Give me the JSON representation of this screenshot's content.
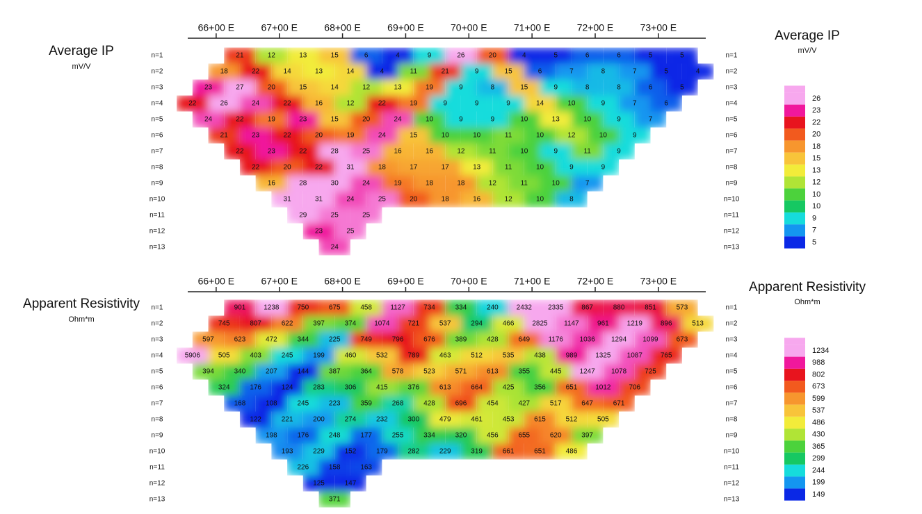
{
  "chart_data": [
    {
      "type": "pseudosection",
      "title": "Average IP",
      "subtitle": "mV/V",
      "xlim": [
        6555,
        7375
      ],
      "xticks": [
        {
          "value": 6600,
          "label": "66+00 E"
        },
        {
          "value": 6700,
          "label": "67+00 E"
        },
        {
          "value": 6800,
          "label": "68+00 E"
        },
        {
          "value": 6900,
          "label": "69+00 E"
        },
        {
          "value": 7000,
          "label": "70+00 E"
        },
        {
          "value": 7100,
          "label": "71+00 E"
        },
        {
          "value": 7200,
          "label": "72+00 E"
        },
        {
          "value": 7300,
          "label": "73+00 E"
        }
      ],
      "series": [
        {
          "name": "n=1",
          "x": [
            6637.5,
            6687.5,
            6737.5,
            6787.5,
            6837.5,
            6887.5,
            6937.5,
            6987.5,
            7037.5,
            7087.5,
            7137.5,
            7187.5,
            7237.5,
            7287.5,
            7337.5
          ],
          "values": [
            21,
            12,
            13,
            15,
            6,
            4,
            9,
            26,
            20,
            4,
            5,
            6,
            6,
            5,
            5
          ]
        },
        {
          "name": "n=2",
          "x": [
            6612.5,
            6662.5,
            6712.5,
            6762.5,
            6812.5,
            6862.5,
            6912.5,
            6962.5,
            7012.5,
            7062.5,
            7112.5,
            7162.5,
            7212.5,
            7262.5,
            7312.5,
            7362.5
          ],
          "values": [
            18,
            22,
            14,
            13,
            14,
            4,
            11,
            21,
            9,
            15,
            6,
            7,
            8,
            7,
            5,
            4
          ]
        },
        {
          "name": "n=3",
          "x": [
            6587.5,
            6637.5,
            6687.5,
            6737.5,
            6787.5,
            6837.5,
            6887.5,
            6937.5,
            6987.5,
            7037.5,
            7087.5,
            7137.5,
            7187.5,
            7237.5,
            7287.5,
            7337.5
          ],
          "values": [
            23,
            27,
            20,
            15,
            14,
            12,
            13,
            19,
            9,
            8,
            15,
            9,
            8,
            8,
            6,
            5
          ]
        },
        {
          "name": "n=4",
          "x": [
            6562.5,
            6612.5,
            6662.5,
            6712.5,
            6762.5,
            6812.5,
            6862.5,
            6912.5,
            6962.5,
            7012.5,
            7062.5,
            7112.5,
            7162.5,
            7212.5,
            7262.5,
            7312.5
          ],
          "values": [
            22,
            26,
            24,
            22,
            16,
            12,
            22,
            19,
            9,
            9,
            9,
            14,
            10,
            9,
            7,
            6
          ]
        },
        {
          "name": "n=5",
          "x": [
            6587.5,
            6637.5,
            6687.5,
            6737.5,
            6787.5,
            6837.5,
            6887.5,
            6937.5,
            6987.5,
            7037.5,
            7087.5,
            7137.5,
            7187.5,
            7237.5,
            7287.5
          ],
          "values": [
            24,
            22,
            19,
            23,
            15,
            20,
            24,
            10,
            9,
            9,
            10,
            13,
            10,
            9,
            7
          ]
        },
        {
          "name": "n=6",
          "x": [
            6612.5,
            6662.5,
            6712.5,
            6762.5,
            6812.5,
            6862.5,
            6912.5,
            6962.5,
            7012.5,
            7062.5,
            7112.5,
            7162.5,
            7212.5,
            7262.5
          ],
          "values": [
            21,
            23,
            22,
            20,
            19,
            24,
            15,
            10,
            10,
            11,
            10,
            12,
            10,
            9
          ]
        },
        {
          "name": "n=7",
          "x": [
            6637.5,
            6687.5,
            6737.5,
            6787.5,
            6837.5,
            6887.5,
            6937.5,
            6987.5,
            7037.5,
            7087.5,
            7137.5,
            7187.5,
            7237.5
          ],
          "values": [
            22,
            23,
            22,
            28,
            25,
            16,
            16,
            12,
            11,
            10,
            9,
            11,
            9
          ]
        },
        {
          "name": "n=8",
          "x": [
            6662.5,
            6712.5,
            6762.5,
            6812.5,
            6862.5,
            6912.5,
            6962.5,
            7012.5,
            7062.5,
            7112.5,
            7162.5,
            7212.5
          ],
          "values": [
            22,
            20,
            22,
            31,
            18,
            17,
            17,
            13,
            11,
            10,
            9,
            9
          ]
        },
        {
          "name": "n=9",
          "x": [
            6687.5,
            6737.5,
            6787.5,
            6837.5,
            6887.5,
            6937.5,
            6987.5,
            7037.5,
            7087.5,
            7137.5,
            7187.5
          ],
          "values": [
            16,
            28,
            30,
            24,
            19,
            18,
            18,
            12,
            11,
            10,
            7
          ]
        },
        {
          "name": "n=10",
          "x": [
            6712.5,
            6762.5,
            6812.5,
            6862.5,
            6912.5,
            6962.5,
            7012.5,
            7062.5,
            7112.5,
            7162.5
          ],
          "values": [
            31,
            31,
            24,
            25,
            20,
            18,
            16,
            12,
            10,
            8
          ]
        },
        {
          "name": "n=11",
          "x": [
            6737.5,
            6787.5,
            6837.5
          ],
          "values": [
            29,
            25,
            25
          ]
        },
        {
          "name": "n=12",
          "x": [
            6762.5,
            6812.5
          ],
          "values": [
            23,
            25
          ]
        },
        {
          "name": "n=13",
          "x": [
            6787.5
          ],
          "values": [
            24
          ]
        }
      ],
      "color_scale": {
        "values": [
          26,
          23,
          22,
          20,
          18,
          15,
          13,
          12,
          10,
          10,
          9,
          7,
          5
        ],
        "colors": [
          "#f7a8ee",
          "#f0189c",
          "#e8141e",
          "#f25a1e",
          "#f7962e",
          "#f8c43a",
          "#f2ec3a",
          "#b0e436",
          "#4cd23c",
          "#16c862",
          "#16dcdc",
          "#1496f0",
          "#0a28e6"
        ]
      }
    },
    {
      "type": "pseudosection",
      "title": "Apparent Resistivity",
      "subtitle": "Ohm*m",
      "xlim": [
        6555,
        7375
      ],
      "xticks": [
        {
          "value": 6600,
          "label": "66+00 E"
        },
        {
          "value": 6700,
          "label": "67+00 E"
        },
        {
          "value": 6800,
          "label": "68+00 E"
        },
        {
          "value": 6900,
          "label": "69+00 E"
        },
        {
          "value": 7000,
          "label": "70+00 E"
        },
        {
          "value": 7100,
          "label": "71+00 E"
        },
        {
          "value": 7200,
          "label": "72+00 E"
        },
        {
          "value": 7300,
          "label": "73+00 E"
        }
      ],
      "series": [
        {
          "name": "n=1",
          "x": [
            6637.5,
            6687.5,
            6737.5,
            6787.5,
            6837.5,
            6887.5,
            6937.5,
            6987.5,
            7037.5,
            7087.5,
            7137.5,
            7187.5,
            7237.5,
            7287.5,
            7337.5
          ],
          "values": [
            901,
            1238,
            750,
            675,
            458,
            1127,
            734,
            334,
            240,
            2432,
            2335,
            867,
            880,
            851,
            573
          ]
        },
        {
          "name": "n=2",
          "x": [
            6612.5,
            6662.5,
            6712.5,
            6762.5,
            6812.5,
            6862.5,
            6912.5,
            6962.5,
            7012.5,
            7062.5,
            7112.5,
            7162.5,
            7212.5,
            7262.5,
            7312.5,
            7362.5
          ],
          "values": [
            745,
            807,
            622,
            397,
            374,
            1074,
            721,
            537,
            294,
            466,
            2825,
            1147,
            961,
            1219,
            896,
            513
          ]
        },
        {
          "name": "n=3",
          "x": [
            6587.5,
            6637.5,
            6687.5,
            6737.5,
            6787.5,
            6837.5,
            6887.5,
            6937.5,
            6987.5,
            7037.5,
            7087.5,
            7137.5,
            7187.5,
            7237.5,
            7287.5,
            7337.5
          ],
          "values": [
            597,
            623,
            472,
            344,
            225,
            749,
            796,
            676,
            389,
            428,
            649,
            1176,
            1036,
            1294,
            1099,
            673
          ]
        },
        {
          "name": "n=4",
          "x": [
            6562.5,
            6612.5,
            6662.5,
            6712.5,
            6762.5,
            6812.5,
            6862.5,
            6912.5,
            6962.5,
            7012.5,
            7062.5,
            7112.5,
            7162.5,
            7212.5,
            7262.5,
            7312.5
          ],
          "values": [
            5906,
            505,
            403,
            245,
            199,
            460,
            532,
            789,
            463,
            512,
            535,
            438,
            989,
            1325,
            1087,
            765
          ]
        },
        {
          "name": "n=5",
          "x": [
            6587.5,
            6637.5,
            6687.5,
            6737.5,
            6787.5,
            6837.5,
            6887.5,
            6937.5,
            6987.5,
            7037.5,
            7087.5,
            7137.5,
            7187.5,
            7237.5,
            7287.5
          ],
          "values": [
            394,
            340,
            207,
            144,
            387,
            364,
            578,
            523,
            571,
            613,
            355,
            445,
            1247,
            1078,
            725
          ]
        },
        {
          "name": "n=6",
          "x": [
            6612.5,
            6662.5,
            6712.5,
            6762.5,
            6812.5,
            6862.5,
            6912.5,
            6962.5,
            7012.5,
            7062.5,
            7112.5,
            7162.5,
            7212.5,
            7262.5
          ],
          "values": [
            324,
            176,
            124,
            283,
            306,
            415,
            376,
            613,
            664,
            425,
            356,
            651,
            1012,
            706
          ]
        },
        {
          "name": "n=7",
          "x": [
            6637.5,
            6687.5,
            6737.5,
            6787.5,
            6837.5,
            6887.5,
            6937.5,
            6987.5,
            7037.5,
            7087.5,
            7137.5,
            7187.5,
            7237.5
          ],
          "values": [
            168,
            108,
            245,
            223,
            359,
            268,
            428,
            696,
            454,
            427,
            517,
            647,
            671
          ]
        },
        {
          "name": "n=8",
          "x": [
            6662.5,
            6712.5,
            6762.5,
            6812.5,
            6862.5,
            6912.5,
            6962.5,
            7012.5,
            7062.5,
            7112.5,
            7162.5,
            7212.5
          ],
          "values": [
            122,
            221,
            200,
            274,
            232,
            300,
            479,
            461,
            453,
            615,
            512,
            505
          ]
        },
        {
          "name": "n=9",
          "x": [
            6687.5,
            6737.5,
            6787.5,
            6837.5,
            6887.5,
            6937.5,
            6987.5,
            7037.5,
            7087.5,
            7137.5,
            7187.5
          ],
          "values": [
            198,
            176,
            248,
            177,
            255,
            334,
            320,
            456,
            655,
            620,
            397
          ]
        },
        {
          "name": "n=10",
          "x": [
            6712.5,
            6762.5,
            6812.5,
            6862.5,
            6912.5,
            6962.5,
            7012.5,
            7062.5,
            7112.5,
            7162.5
          ],
          "values": [
            193,
            229,
            152,
            179,
            282,
            229,
            319,
            661,
            651,
            486
          ]
        },
        {
          "name": "n=11",
          "x": [
            6737.5,
            6787.5,
            6837.5
          ],
          "values": [
            226,
            158,
            163
          ]
        },
        {
          "name": "n=12",
          "x": [
            6762.5,
            6812.5
          ],
          "values": [
            125,
            147
          ]
        },
        {
          "name": "n=13",
          "x": [
            6787.5
          ],
          "values": [
            371
          ]
        }
      ],
      "color_scale": {
        "values": [
          1234,
          988,
          802,
          673,
          599,
          537,
          486,
          430,
          365,
          299,
          244,
          199,
          149
        ],
        "colors": [
          "#f7a8ee",
          "#f0189c",
          "#e8141e",
          "#f25a1e",
          "#f7962e",
          "#f8c43a",
          "#f2ec3a",
          "#b0e436",
          "#4cd23c",
          "#16c862",
          "#16dcdc",
          "#1496f0",
          "#0a28e6"
        ]
      }
    }
  ]
}
